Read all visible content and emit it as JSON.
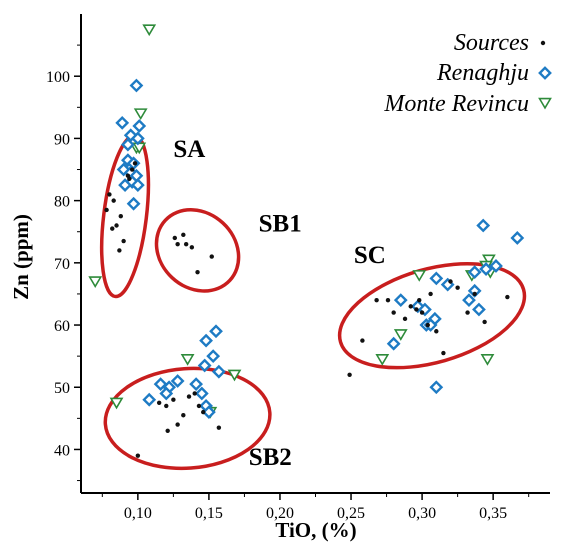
{
  "chart_data": {
    "type": "scatter",
    "xlabel": "TiO, (%)",
    "ylabel": "Zn (ppm)",
    "xlim": [
      0.06,
      0.39
    ],
    "ylim": [
      33,
      110
    ],
    "x_ticks": [
      0.1,
      0.15,
      0.2,
      0.25,
      0.3,
      0.35
    ],
    "x_tick_labels": [
      "0,10",
      "0,15",
      "0,20",
      "0,25",
      "0,30",
      "0,35"
    ],
    "y_ticks": [
      40,
      50,
      60,
      70,
      80,
      90,
      100
    ],
    "y_tick_labels": [
      "40",
      "50",
      "60",
      "70",
      "80",
      "90",
      "100"
    ],
    "legend_position": "top-right",
    "series": [
      {
        "name": "Sources",
        "marker": "dot",
        "color": "#111111",
        "points": [
          [
            0.08,
            81
          ],
          [
            0.083,
            80
          ],
          [
            0.078,
            78.5
          ],
          [
            0.088,
            77.5
          ],
          [
            0.085,
            76
          ],
          [
            0.082,
            75.5
          ],
          [
            0.09,
            73.5
          ],
          [
            0.087,
            72
          ],
          [
            0.093,
            84
          ],
          [
            0.096,
            85
          ],
          [
            0.098,
            86
          ],
          [
            0.094,
            83.5
          ],
          [
            0.126,
            74
          ],
          [
            0.128,
            73
          ],
          [
            0.132,
            74.5
          ],
          [
            0.134,
            73
          ],
          [
            0.138,
            72.5
          ],
          [
            0.142,
            68.5
          ],
          [
            0.152,
            71
          ],
          [
            0.1,
            39
          ],
          [
            0.115,
            47.5
          ],
          [
            0.12,
            47
          ],
          [
            0.121,
            43
          ],
          [
            0.125,
            48
          ],
          [
            0.128,
            44
          ],
          [
            0.132,
            45.5
          ],
          [
            0.136,
            48.5
          ],
          [
            0.14,
            49
          ],
          [
            0.143,
            47
          ],
          [
            0.146,
            46
          ],
          [
            0.157,
            43.5
          ],
          [
            0.249,
            52
          ],
          [
            0.258,
            57.5
          ],
          [
            0.268,
            64
          ],
          [
            0.276,
            64
          ],
          [
            0.28,
            62
          ],
          [
            0.288,
            61
          ],
          [
            0.292,
            63
          ],
          [
            0.296,
            62.5
          ],
          [
            0.298,
            64
          ],
          [
            0.3,
            62
          ],
          [
            0.304,
            60
          ],
          [
            0.306,
            65
          ],
          [
            0.31,
            59
          ],
          [
            0.315,
            55.5
          ],
          [
            0.32,
            67
          ],
          [
            0.325,
            66
          ],
          [
            0.332,
            62
          ],
          [
            0.337,
            65
          ],
          [
            0.344,
            60.5
          ],
          [
            0.36,
            64.5
          ]
        ]
      },
      {
        "name": "Renaghju",
        "marker": "diamond",
        "color": "#1e7bc4",
        "points": [
          [
            0.099,
            98.5
          ],
          [
            0.089,
            92.5
          ],
          [
            0.101,
            92
          ],
          [
            0.095,
            90.5
          ],
          [
            0.1,
            90
          ],
          [
            0.093,
            89
          ],
          [
            0.093,
            86.5
          ],
          [
            0.097,
            86
          ],
          [
            0.09,
            85
          ],
          [
            0.095,
            84.5
          ],
          [
            0.099,
            84
          ],
          [
            0.096,
            83
          ],
          [
            0.091,
            82.5
          ],
          [
            0.1,
            82.5
          ],
          [
            0.097,
            79.5
          ],
          [
            0.155,
            59
          ],
          [
            0.148,
            57.5
          ],
          [
            0.153,
            55
          ],
          [
            0.147,
            53.5
          ],
          [
            0.157,
            52.5
          ],
          [
            0.128,
            51
          ],
          [
            0.122,
            50
          ],
          [
            0.116,
            50.5
          ],
          [
            0.141,
            50.5
          ],
          [
            0.12,
            49
          ],
          [
            0.145,
            49
          ],
          [
            0.108,
            48
          ],
          [
            0.148,
            47
          ],
          [
            0.15,
            46
          ],
          [
            0.343,
            76
          ],
          [
            0.367,
            74
          ],
          [
            0.352,
            69.5
          ],
          [
            0.337,
            68.5
          ],
          [
            0.345,
            69
          ],
          [
            0.31,
            67.5
          ],
          [
            0.337,
            65.5
          ],
          [
            0.318,
            66.5
          ],
          [
            0.285,
            64
          ],
          [
            0.297,
            63
          ],
          [
            0.302,
            62.5
          ],
          [
            0.333,
            64
          ],
          [
            0.309,
            61
          ],
          [
            0.303,
            60
          ],
          [
            0.306,
            60
          ],
          [
            0.34,
            62.5
          ],
          [
            0.28,
            57
          ],
          [
            0.31,
            50
          ]
        ]
      },
      {
        "name": "Monte Revincu",
        "marker": "triangle-down",
        "color": "#2e8b3a",
        "points": [
          [
            0.108,
            107.5
          ],
          [
            0.102,
            94
          ],
          [
            0.099,
            88.5
          ],
          [
            0.101,
            88.5
          ],
          [
            0.07,
            67
          ],
          [
            0.085,
            47.5
          ],
          [
            0.135,
            54.5
          ],
          [
            0.168,
            52
          ],
          [
            0.151,
            46
          ],
          [
            0.272,
            54.5
          ],
          [
            0.285,
            58.5
          ],
          [
            0.298,
            68
          ],
          [
            0.335,
            68
          ],
          [
            0.347,
            70.5
          ],
          [
            0.348,
            68.5
          ],
          [
            0.345,
            69.5
          ],
          [
            0.346,
            54.5
          ]
        ]
      }
    ],
    "group_labels": [
      {
        "text": "SA",
        "x": 0.125,
        "y": 87
      },
      {
        "text": "SB1",
        "x": 0.185,
        "y": 75
      },
      {
        "text": "SC",
        "x": 0.252,
        "y": 70
      },
      {
        "text": "SB2",
        "x": 0.178,
        "y": 37.5
      }
    ],
    "ellipse_color": "#c81e1e",
    "ellipses": [
      {
        "cx": 0.091,
        "cy": 77.5,
        "rx": 0.015,
        "ry": 13,
        "rotate": 7
      },
      {
        "cx": 0.142,
        "cy": 72,
        "rx": 0.031,
        "ry": 6,
        "rotate": 43
      },
      {
        "cx": 0.307,
        "cy": 61.5,
        "rx": 0.067,
        "ry": 7.5,
        "rotate": -16
      },
      {
        "cx": 0.135,
        "cy": 45,
        "rx": 0.058,
        "ry": 8,
        "rotate": -4
      }
    ]
  }
}
